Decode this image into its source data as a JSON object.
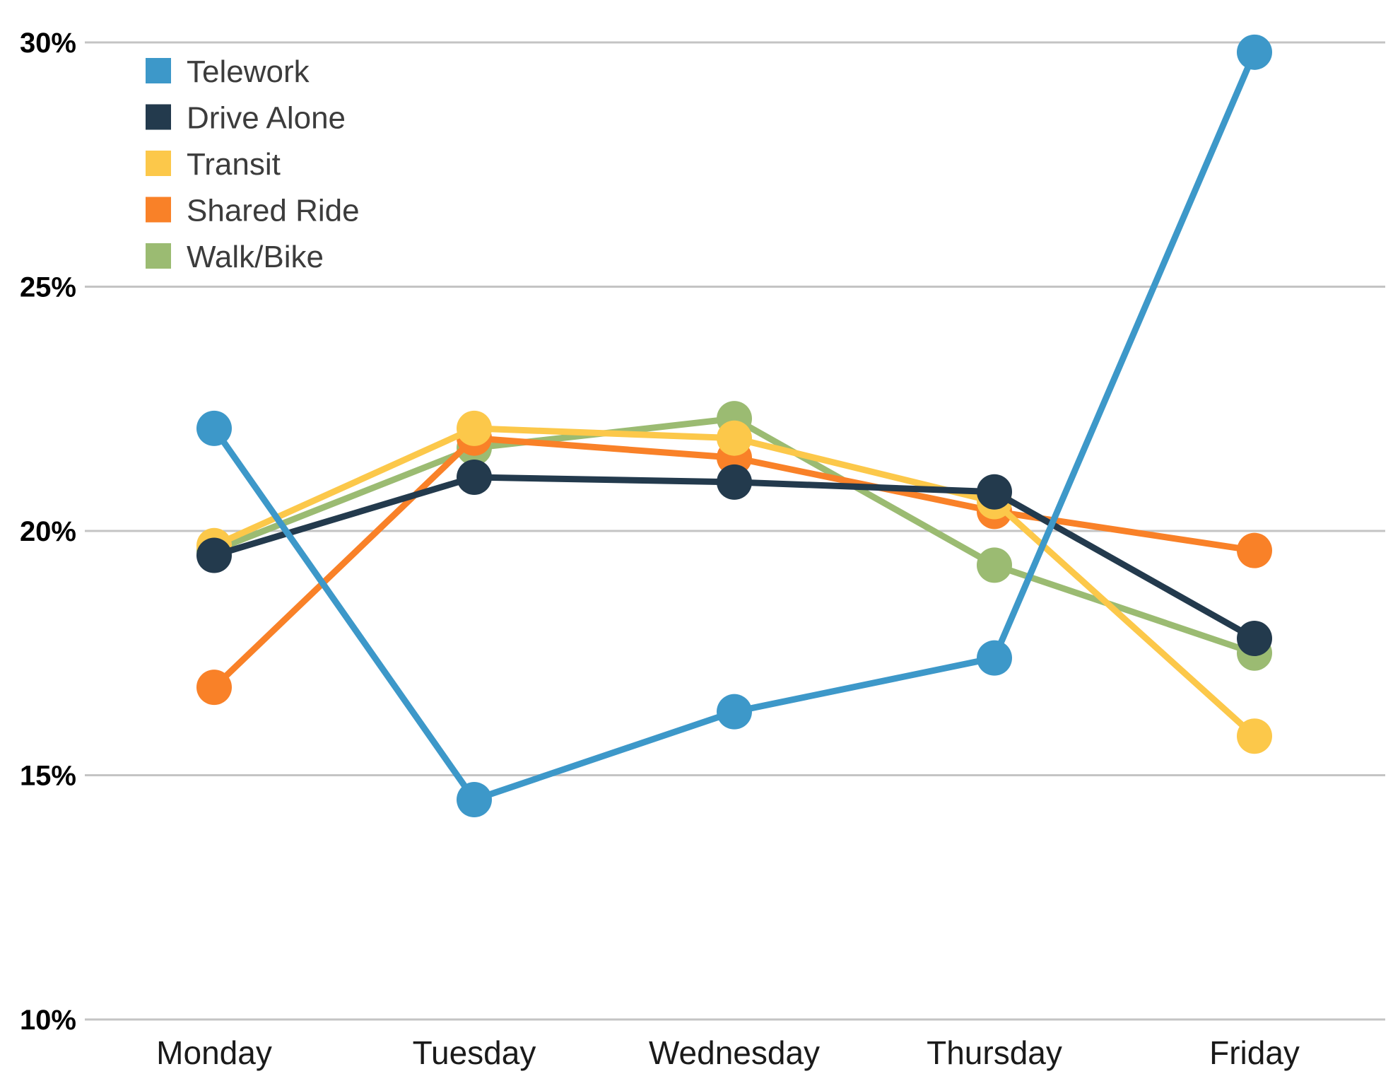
{
  "chart_data": {
    "type": "line",
    "title": "",
    "xlabel": "",
    "ylabel": "",
    "categories": [
      "Monday",
      "Tuesday",
      "Wednesday",
      "Thursday",
      "Friday"
    ],
    "ylim": [
      10,
      30
    ],
    "yticks": [
      10,
      15,
      20,
      25,
      30
    ],
    "ytick_labels": [
      "10%",
      "15%",
      "20%",
      "25%",
      "30%"
    ],
    "grid": true,
    "legend_position": "top-left",
    "series": [
      {
        "name": "Walk/Bike",
        "color": "#9bbb72",
        "values": [
          19.6,
          21.7,
          22.3,
          19.3,
          17.5
        ]
      },
      {
        "name": "Shared Ride",
        "color": "#f98128",
        "values": [
          16.8,
          21.9,
          21.5,
          20.4,
          19.6
        ]
      },
      {
        "name": "Transit",
        "color": "#fcc84a",
        "values": [
          19.7,
          22.1,
          21.9,
          20.6,
          15.8
        ]
      },
      {
        "name": "Drive Alone",
        "color": "#233a4d",
        "values": [
          19.5,
          21.1,
          21.0,
          20.8,
          17.8
        ]
      },
      {
        "name": "Telework",
        "color": "#3d98c9",
        "values": [
          22.1,
          14.5,
          16.3,
          17.4,
          29.8
        ]
      }
    ],
    "legend_order": [
      "Telework",
      "Drive Alone",
      "Transit",
      "Shared Ride",
      "Walk/Bike"
    ]
  }
}
